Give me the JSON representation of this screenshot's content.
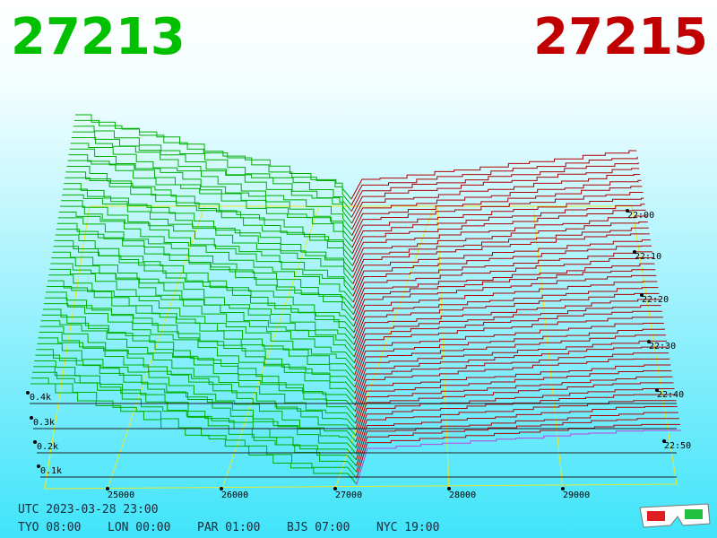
{
  "header": {
    "bid": "27213",
    "ask": "27215"
  },
  "price_axis": {
    "labels": [
      "25000",
      "26000",
      "27000",
      "28000",
      "29000"
    ]
  },
  "volume_axis": {
    "labels": [
      "0.1k",
      "0.2k",
      "0.3k",
      "0.4k"
    ]
  },
  "time_axis": {
    "labels": [
      "22:00",
      "22:10",
      "22:20",
      "22:30",
      "22:40",
      "22:50"
    ]
  },
  "footer": {
    "utc": "UTC 2023-03-28 23:00",
    "zones": [
      "TYO 08:00",
      "LON 00:00",
      "PAR 01:00",
      "BJS 07:00",
      "NYC 19:00"
    ]
  }
}
